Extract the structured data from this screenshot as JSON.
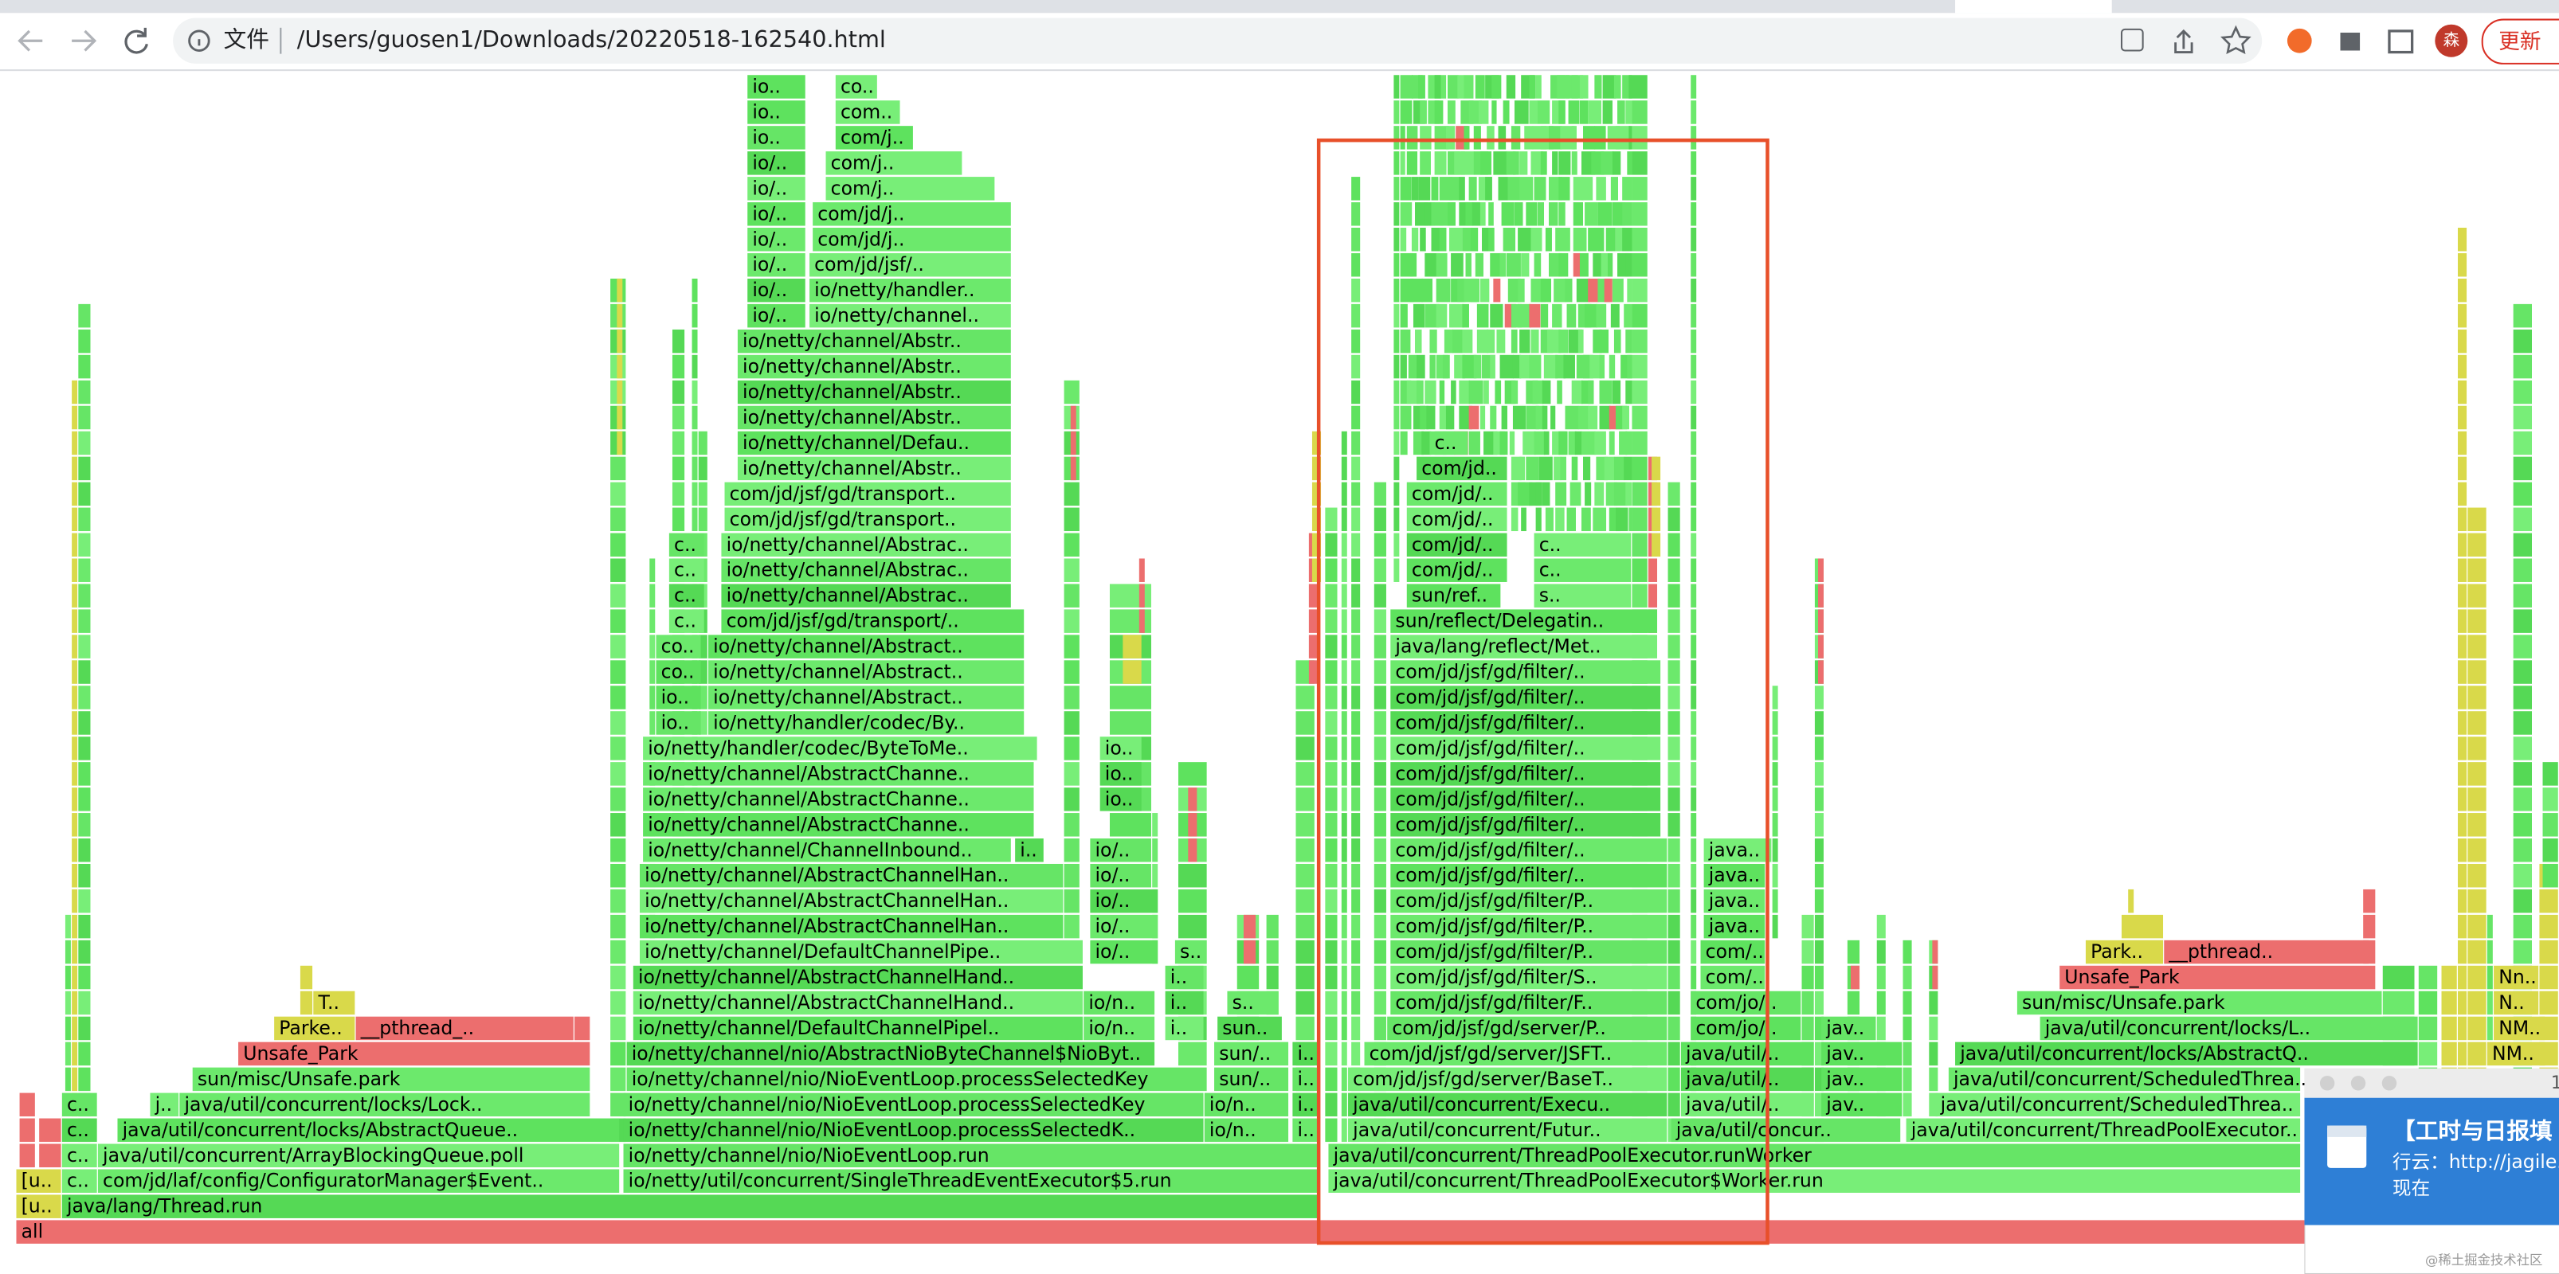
{
  "browser": {
    "address_prefix": "文件",
    "url": "/Users/guosen1/Downloads/20220518-162540.html",
    "avatar": "森",
    "update_button": "更新"
  },
  "flame_graph": {
    "frames": [
      "all",
      "[u..",
      "java/lang/Thread.run",
      "[u..",
      "c..",
      "com/jd/laf/config/ConfiguratorManager$Event..",
      "io/netty/util/concurrent/SingleThreadEventExecutor$5.run",
      "java/util/concurrent/ThreadPoolExecutor$Worker.run",
      "c..",
      "java/util/concurrent/ArrayBlockingQueue.poll",
      "io/netty/channel/nio/NioEventLoop.run",
      "java/util/concurrent/ThreadPoolExecutor.runWorker",
      "c..",
      "java/util/concurrent/locks/AbstractQueue..",
      "io/netty/channel/nio/NioEventLoop.processSelectedK..",
      "io/n..",
      "i..",
      "java/util/concurrent/Futur..",
      "java/util/concur..",
      "java/util/concurrent/ThreadPoolExecutor..",
      "c..",
      "j..",
      "java/util/concurrent/locks/Lock..",
      "io/netty/channel/nio/NioEventLoop.processSelectedKey",
      "io/n..",
      "i..",
      "java/util/concurrent/Execu..",
      "java/util/..",
      "jav..",
      "java/util/concurrent/ScheduledThrea..",
      "sun/misc/Unsafe.park",
      "io/netty/channel/nio/NioEventLoop.processSelectedKey",
      "sun/..",
      "i..",
      "com/jd/jsf/gd/server/BaseT..",
      "java/util/..",
      "jav..",
      "java/util/concurrent/ScheduledThrea..",
      "Unsafe_Park",
      "io/netty/channel/nio/AbstractNioByteChannel$NioByt..",
      "sun/..",
      "i..",
      "com/jd/jsf/gd/server/JSFT..",
      "java/util/..",
      "jav..",
      "java/util/concurrent/locks/AbstractQ..",
      "NM..",
      "Parke..",
      "__pthread_..",
      "io/netty/channel/DefaultChannelPipel..",
      "io/n..",
      "i..",
      "sun..",
      "com/jd/jsf/gd/server/P..",
      "com/jo/..",
      "jav..",
      "java/util/concurrent/locks/L..",
      "NM..",
      "T..",
      "io/netty/channel/AbstractChannelHand..",
      "io/n..",
      "i..",
      "s..",
      "com/jd/jsf/gd/filter/F..",
      "com/jo/..",
      "sun/misc/Unsafe.park",
      "N..",
      "io/netty/channel/AbstractChannelHand..",
      "i..",
      "com/jd/jsf/gd/filter/S..",
      "com/..",
      "Unsafe_Park",
      "Nn..",
      "io/netty/channel/DefaultChannelPipe..",
      "io/..",
      "s..",
      "com/jd/jsf/gd/filter/P..",
      "com/..",
      "Park..",
      "__pthread..",
      "io/netty/channel/AbstractChannelHan..",
      "io/..",
      "com/jd/jsf/gd/filter/P..",
      "java..",
      "io/netty/channel/AbstractChannelHan..",
      "io/..",
      "com/jd/jsf/gd/filter/P..",
      "java..",
      "io/netty/channel/AbstractChannelHan..",
      "io/..",
      "com/jd/jsf/gd/filter/..",
      "java..",
      "io/netty/channel/ChannelInbound..",
      "i..",
      "io/..",
      "com/jd/jsf/gd/filter/..",
      "java..",
      "io/netty/channel/AbstractChanne..",
      "com/jd/jsf/gd/filter/..",
      "io/netty/channel/AbstractChanne..",
      "io..",
      "com/jd/jsf/gd/filter/..",
      "io/netty/channel/AbstractChanne..",
      "io..",
      "com/jd/jsf/gd/filter/..",
      "io/netty/handler/codec/ByteToMe..",
      "io..",
      "com/jd/jsf/gd/filter/..",
      "io..",
      "io/netty/handler/codec/By..",
      "com/jd/jsf/gd/filter/..",
      "io..",
      "io/netty/channel/Abstract..",
      "com/jd/jsf/gd/filter/..",
      "co..",
      "io/netty/channel/Abstract..",
      "com/jd/jsf/gd/filter/..",
      "co..",
      "io/netty/channel/Abstract..",
      "java/lang/reflect/Met..",
      "c..",
      "com/jd/jsf/gd/transport/..",
      "sun/reflect/Delegatin..",
      "c..",
      "io/netty/channel/Abstrac..",
      "sun/ref..",
      "s..",
      "c..",
      "io/netty/channel/Abstrac..",
      "com/jd/..",
      "c..",
      "c..",
      "io/netty/channel/Abstrac..",
      "com/jd/..",
      "c..",
      "com/jd/jsf/gd/transport..",
      "com/jd/..",
      "com/jd/jsf/gd/transport..",
      "com/jd/..",
      "io/netty/channel/Abstr..",
      "com/jd..",
      "io/netty/channel/Defau..",
      "c..",
      "io/netty/channel/Abstr..",
      "io/netty/channel/Abstr..",
      "io/netty/channel/Abstr..",
      "io/netty/channel/Abstr..",
      "io/..",
      "io/netty/channel..",
      "io/..",
      "io/netty/handler..",
      "io/..",
      "com/jd/jsf/..",
      "io/..",
      "com/jd/j..",
      "io/..",
      "com/jd/j..",
      "io/..",
      "com/j..",
      "io/..",
      "com/j..",
      "io..",
      "com/j..",
      "io..",
      "com..",
      "io..",
      "co.."
    ]
  },
  "notification": {
    "badge": "1",
    "title": "【工时与日报填",
    "line": "行云：http://jagile.",
    "time": "现在"
  },
  "watermark": "@稀土掘金技术社区"
}
